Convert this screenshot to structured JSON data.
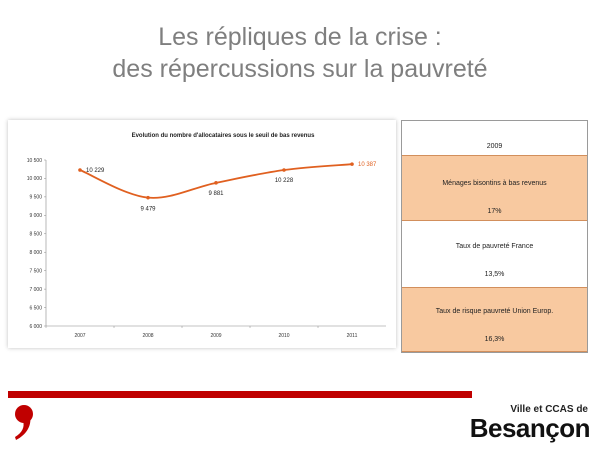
{
  "slide": {
    "title_line1": "Les répliques de la crise :",
    "title_line2": "des répercussions sur la pauvreté"
  },
  "chart_data": {
    "type": "line",
    "title": "Evolution du nombre d'allocataires sous le seuil de bas revenus",
    "categories": [
      "2007",
      "2008",
      "2009",
      "2010",
      "2011"
    ],
    "values": [
      10229,
      9479,
      9881,
      10228,
      10387
    ],
    "data_labels": [
      "10 229",
      "9 479",
      "9 881",
      "10 228",
      "10 387"
    ],
    "ylim": [
      6000,
      10500
    ],
    "yticks": [
      {
        "value": 6000,
        "label": "6 000"
      },
      {
        "value": 6500,
        "label": "6 500"
      },
      {
        "value": 7000,
        "label": "7 000"
      },
      {
        "value": 7500,
        "label": "7 500"
      },
      {
        "value": 8000,
        "label": "8 000"
      },
      {
        "value": 8500,
        "label": "8 500"
      },
      {
        "value": 9000,
        "label": "9 000"
      },
      {
        "value": 9500,
        "label": "9 500"
      },
      {
        "value": 10000,
        "label": "10 000"
      },
      {
        "value": 10500,
        "label": "10 500"
      }
    ],
    "line_color": "#e06020",
    "grid": false,
    "xlabel": "",
    "ylabel": ""
  },
  "table": {
    "year": "2009",
    "menages_label": "Ménages bisontins à bas revenus",
    "menages_value": "17%",
    "france_label": "Taux de pauvreté  France",
    "france_value": "13,5%",
    "europe_label": "Taux de risque pauvreté  Union Europ.",
    "europe_value": "16,3%"
  },
  "logo": {
    "top": "Ville et CCAS de",
    "main": "Besançon"
  },
  "colors": {
    "accent_red": "#c00000",
    "highlight_orange": "#f8c9a0",
    "title_gray": "#7f7f7f"
  }
}
